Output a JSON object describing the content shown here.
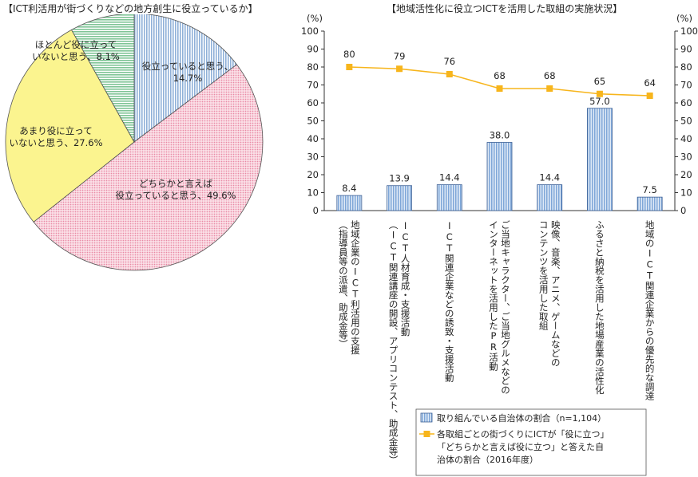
{
  "left_title": "【ICT利活用が街づくりなどの地方創生に役立っているか】",
  "right_title": "【地域活性化に役立つICTを活用した取組の実施状況】",
  "chart_data": [
    {
      "type": "pie",
      "start": "12 o'clock, clockwise",
      "slices": [
        {
          "label_lines": [
            "役立っていると思う、",
            "14.7%"
          ],
          "value": 14.7,
          "color": "#8fb0d8",
          "pattern": "vertical-stripes"
        },
        {
          "label_lines": [
            "どちらかと言えば",
            "役立っていると思う、49.6%"
          ],
          "value": 49.6,
          "color": "#f4b8c8",
          "pattern": "dots"
        },
        {
          "label_lines": [
            "あまり役に立って",
            "いないと思う、27.6%"
          ],
          "value": 27.6,
          "color": "#fbf48f",
          "pattern": "none"
        },
        {
          "label_lines": [
            "ほとんど役に立って",
            "いないと思う、8.1%"
          ],
          "value": 8.1,
          "color": "#a9d8b8",
          "pattern": "horizontal-stripes"
        }
      ]
    },
    {
      "type": "bar+line",
      "y_unit_left": "(%)",
      "y_unit_right": "(%)",
      "ylim": [
        0,
        100
      ],
      "yticks": [
        0,
        10,
        20,
        30,
        40,
        50,
        60,
        70,
        80,
        90,
        100
      ],
      "categories": [
        [
          "地域企業のICT利活用の支援",
          "（指導員等の派遣、助成金等）"
        ],
        [
          "ICT人材育成・支援活動",
          "（ICT関連講座の開設、アプリコンテスト、助成金等）"
        ],
        [
          "ICT関連企業などの誘致・支援活動"
        ],
        [
          "ご当地キャラクター、ご当地グルメなどの",
          "インターネットを活用したPR活動"
        ],
        [
          "映像、音楽、アニメ、ゲームなどの",
          "コンテンツを活用した取組"
        ],
        [
          "ふるさと納税を活用した地場産業の活性化"
        ],
        [
          "地域のICT関連企業からの優先的な調達"
        ]
      ],
      "series": [
        {
          "name": "取り組んでいる自治体の割合（n=1,104）",
          "kind": "bar",
          "color": "#9dbbe3",
          "values": [
            8.4,
            13.9,
            14.4,
            38.0,
            14.4,
            57.0,
            7.5
          ],
          "labels": [
            "8.4",
            "13.9",
            "14.4",
            "38.0",
            "14.4",
            "57.0",
            "7.5"
          ]
        },
        {
          "name_lines": [
            "各取組ごとの街づくりにICTが「役に立つ」",
            "「どちらかと言えば役に立つ」と答えた自",
            "治体の割合（2016年度）"
          ],
          "kind": "line",
          "color": "#f7b51c",
          "values": [
            80,
            79,
            76,
            68,
            68,
            65,
            64
          ],
          "labels": [
            "80",
            "79",
            "76",
            "68",
            "68",
            "65",
            "64"
          ]
        }
      ],
      "legend_placement": "bottom-right"
    }
  ]
}
